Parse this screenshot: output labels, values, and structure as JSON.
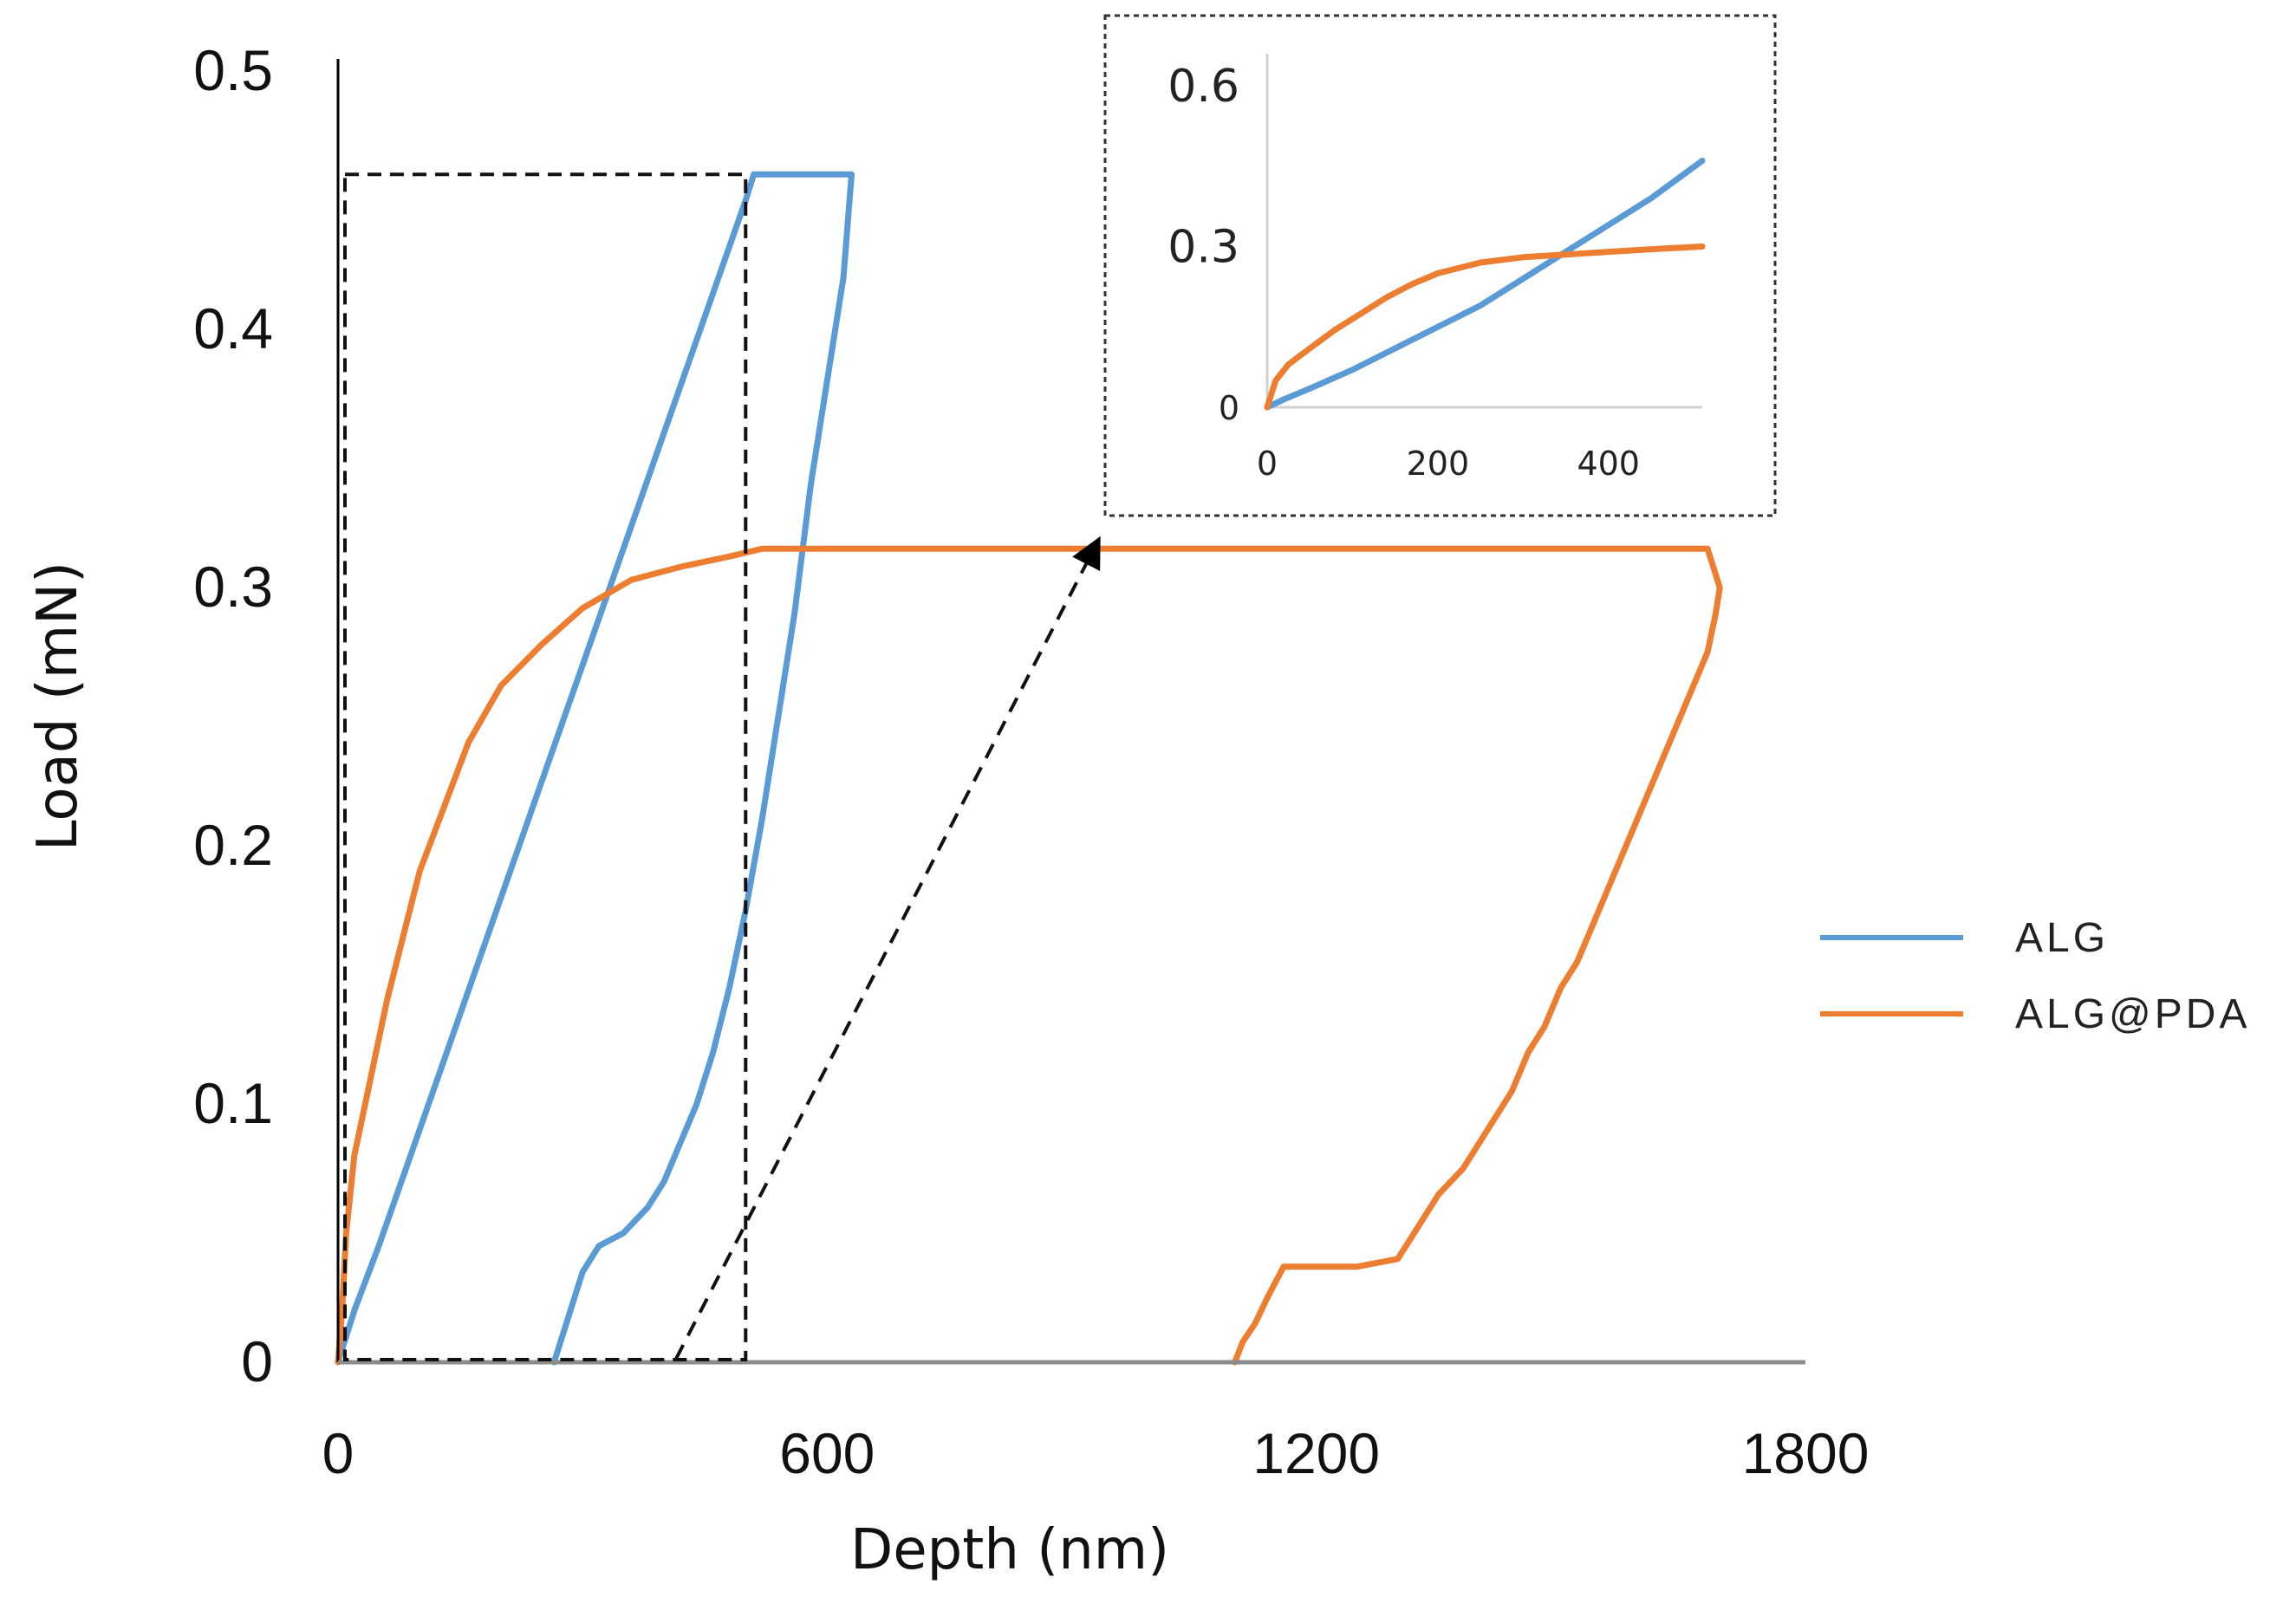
{
  "chart_data": [
    {
      "id": "main",
      "type": "line",
      "title": "",
      "xlabel": "Depth (nm)",
      "ylabel": "Load (mN)",
      "xlim": [
        0,
        1800
      ],
      "ylim": [
        0,
        0.5
      ],
      "xticks": [
        0,
        600,
        1200,
        1800
      ],
      "xtick_labels": [
        "0",
        "600",
        "1200",
        "1800"
      ],
      "yticks": [
        0,
        0.1,
        0.2,
        0.3,
        0.4,
        0.5
      ],
      "ytick_labels": [
        "0",
        "0.1",
        "0.2",
        "0.3",
        "0.4",
        "0.5"
      ],
      "grid": false,
      "legend_position": "right",
      "zoom_region": {
        "x": [
          0,
          500
        ],
        "y": [
          0,
          0.46
        ]
      },
      "series": [
        {
          "name": "ALG",
          "color": "#5b9bd5",
          "x": [
            0,
            20,
            50,
            100,
            150,
            200,
            250,
            300,
            350,
            400,
            450,
            500,
            510,
            520,
            630,
            620,
            600,
            580,
            560,
            540,
            520,
            500,
            480,
            460,
            440,
            420,
            400,
            380,
            350,
            320,
            300,
            290,
            280,
            270,
            265
          ],
          "y": [
            0,
            0.02,
            0.045,
            0.09,
            0.135,
            0.18,
            0.225,
            0.27,
            0.315,
            0.36,
            0.405,
            0.45,
            0.46,
            0.46,
            0.46,
            0.42,
            0.38,
            0.34,
            0.29,
            0.25,
            0.21,
            0.175,
            0.145,
            0.12,
            0.1,
            0.085,
            0.07,
            0.06,
            0.05,
            0.045,
            0.035,
            0.025,
            0.015,
            0.005,
            0
          ]
        },
        {
          "name": "ALG@PDA",
          "color": "#ed7d31",
          "x": [
            0,
            5,
            10,
            20,
            40,
            60,
            80,
            100,
            130,
            160,
            200,
            250,
            300,
            360,
            420,
            480,
            520,
            600,
            800,
            1000,
            1200,
            1400,
            1600,
            1680,
            1695,
            1690,
            1680,
            1660,
            1640,
            1620,
            1600,
            1580,
            1560,
            1540,
            1520,
            1500,
            1480,
            1460,
            1440,
            1420,
            1400,
            1380,
            1350,
            1320,
            1300,
            1250,
            1200,
            1160,
            1140,
            1125,
            1110,
            1100
          ],
          "y": [
            0,
            0.02,
            0.05,
            0.08,
            0.11,
            0.14,
            0.165,
            0.19,
            0.215,
            0.24,
            0.262,
            0.278,
            0.292,
            0.303,
            0.308,
            0.312,
            0.315,
            0.315,
            0.315,
            0.315,
            0.315,
            0.315,
            0.315,
            0.315,
            0.3,
            0.29,
            0.275,
            0.26,
            0.245,
            0.23,
            0.215,
            0.2,
            0.185,
            0.17,
            0.155,
            0.145,
            0.13,
            0.12,
            0.105,
            0.095,
            0.085,
            0.075,
            0.065,
            0.05,
            0.04,
            0.037,
            0.037,
            0.037,
            0.025,
            0.015,
            0.008,
            0
          ]
        }
      ]
    },
    {
      "id": "inset",
      "type": "line",
      "title": "",
      "xlabel": "",
      "ylabel": "",
      "xlim": [
        0,
        510
      ],
      "ylim": [
        0,
        0.65
      ],
      "xticks": [
        0,
        200,
        400
      ],
      "xtick_labels": [
        "0",
        "200",
        "400"
      ],
      "yticks": [
        0,
        0.3,
        0.6
      ],
      "ytick_labels": [
        "0",
        "0.3",
        "0.6"
      ],
      "grid": false,
      "series": [
        {
          "name": "ALG",
          "color": "#5b9bd5",
          "x": [
            0,
            20,
            50,
            100,
            150,
            200,
            250,
            300,
            350,
            400,
            450,
            510
          ],
          "y": [
            0,
            0.015,
            0.035,
            0.07,
            0.11,
            0.15,
            0.19,
            0.24,
            0.29,
            0.34,
            0.39,
            0.46
          ]
        },
        {
          "name": "ALG@PDA",
          "color": "#ed7d31",
          "x": [
            0,
            10,
            25,
            50,
            80,
            110,
            140,
            170,
            200,
            250,
            300,
            350,
            400,
            450,
            510
          ],
          "y": [
            0,
            0.05,
            0.08,
            0.11,
            0.145,
            0.175,
            0.205,
            0.23,
            0.25,
            0.27,
            0.28,
            0.285,
            0.29,
            0.295,
            0.3
          ]
        }
      ]
    }
  ]
}
